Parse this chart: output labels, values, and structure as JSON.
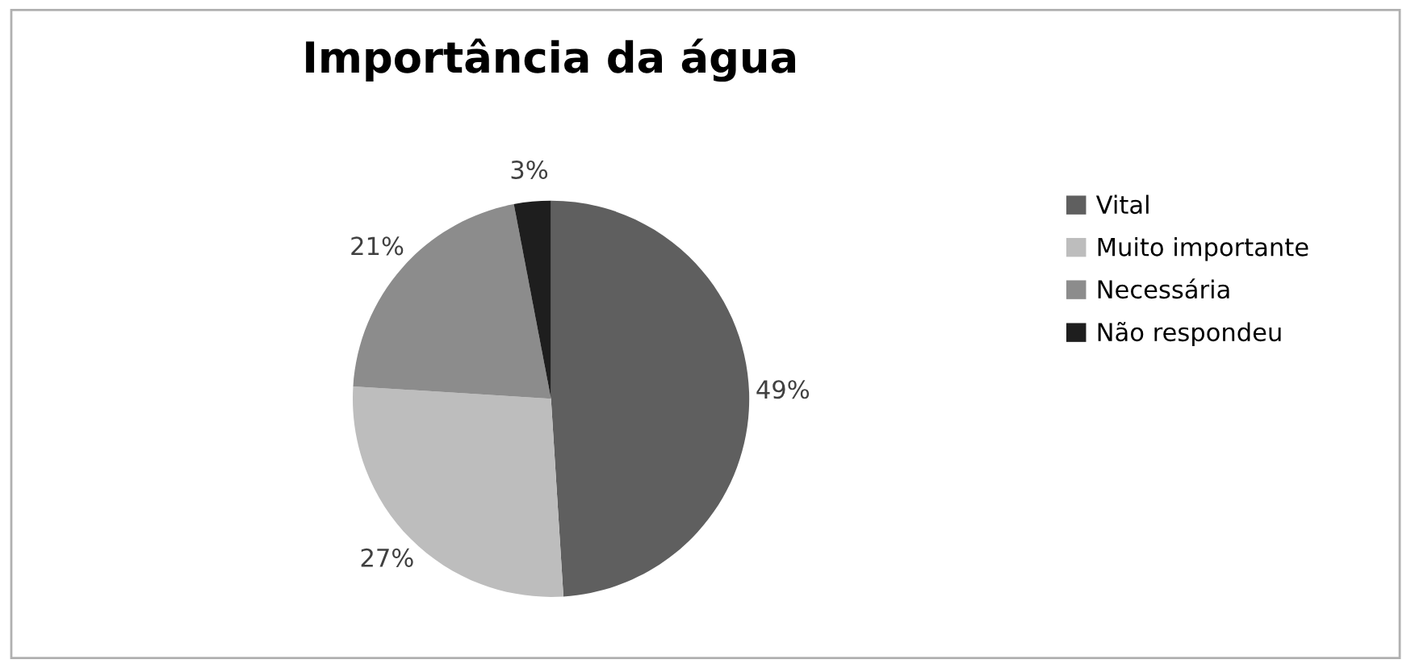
{
  "chart_data": {
    "type": "pie",
    "title": "Importância da água",
    "categories": [
      "Vital",
      "Muito importante",
      "Necessária",
      "Não respondeu"
    ],
    "values": [
      49,
      27,
      21,
      3
    ],
    "colors": [
      "#5f5f5f",
      "#bdbdbd",
      "#8c8c8c",
      "#1e1e1e"
    ],
    "value_labels": [
      "49%",
      "27%",
      "21%",
      "3%"
    ],
    "legend": "right"
  }
}
